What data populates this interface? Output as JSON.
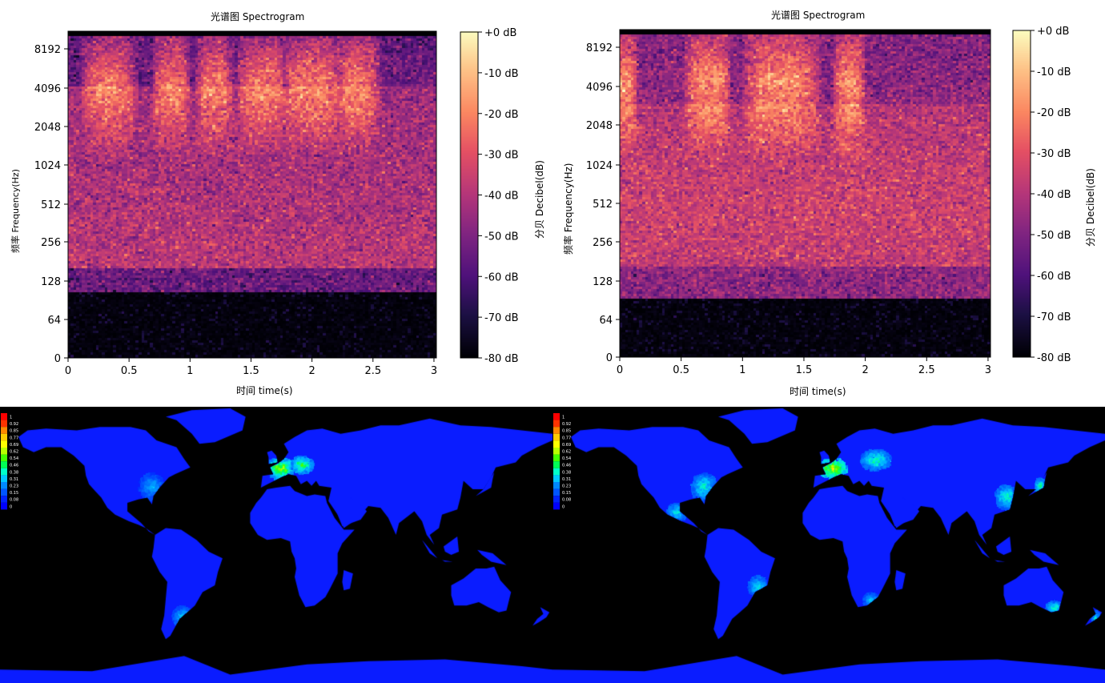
{
  "spectrograms": [
    {
      "title": "光谱图 Spectrogram",
      "xlabel": "时间 time(s)",
      "ylabel": "频率 Frequency(Hz)",
      "colorbar_label": "分贝 Decibel(dB)"
    },
    {
      "title": "光谱图 Spectrogram",
      "xlabel": "时间 time(s)",
      "ylabel": "频率 Frequency(Hz)",
      "colorbar_label": "分贝 Decibel(dB)"
    }
  ],
  "maps": [
    {
      "legend_labels": [
        "1",
        "0.92",
        "0.85",
        "0.77",
        "0.69",
        "0.62",
        "0.54",
        "0.46",
        "0.38",
        "0.31",
        "0.23",
        "0.15",
        "0.08",
        "0"
      ]
    },
    {
      "legend_labels": [
        "1",
        "0.92",
        "0.85",
        "0.77",
        "0.69",
        "0.62",
        "0.54",
        "0.46",
        "0.38",
        "0.31",
        "0.23",
        "0.15",
        "0.08",
        "0"
      ]
    }
  ],
  "chart_data": [
    {
      "type": "heatmap",
      "title": "光谱图 Spectrogram",
      "xlabel": "时间 time(s)",
      "ylabel": "频率 Frequency(Hz)",
      "x_ticks": [
        "0",
        "0.5",
        "1",
        "1.5",
        "2",
        "2.5",
        "3"
      ],
      "y_ticks": [
        "0",
        "64",
        "128",
        "256",
        "512",
        "1024",
        "2048",
        "4096",
        "8192"
      ],
      "y_scale": "log2 (symlog)",
      "colorbar_label": "分贝 Decibel(dB)",
      "colorbar_ticks": [
        "+0 dB",
        "-10 dB",
        "-20 dB",
        "-30 dB",
        "-40 dB",
        "-50 dB",
        "-60 dB",
        "-70 dB",
        "-80 dB"
      ],
      "colormap": "magma",
      "time_range": [
        0,
        3.02
      ],
      "db_range": [
        -80,
        0
      ],
      "bursts": [
        [
          0.18,
          0.5
        ],
        [
          0.75,
          0.95
        ],
        [
          1.1,
          1.3
        ],
        [
          1.45,
          1.75
        ],
        [
          1.8,
          2.2
        ],
        [
          2.25,
          2.5
        ]
      ],
      "burst_freq_center": 4600
    },
    {
      "type": "heatmap",
      "title": "光谱图 Spectrogram",
      "xlabel": "时间 time(s)",
      "ylabel": "频率 Frequency(Hz)",
      "x_ticks": [
        "0",
        "0.5",
        "1",
        "1.5",
        "2",
        "2.5",
        "3"
      ],
      "y_ticks": [
        "0",
        "64",
        "128",
        "256",
        "512",
        "1024",
        "2048",
        "4096",
        "8192"
      ],
      "y_scale": "log2 (symlog)",
      "colorbar_label": "分贝 Decibel(dB)",
      "colorbar_ticks": [
        "+0 dB",
        "-10 dB",
        "-20 dB",
        "-30 dB",
        "-40 dB",
        "-50 dB",
        "-60 dB",
        "-70 dB",
        "-80 dB"
      ],
      "colormap": "magma",
      "time_range": [
        0,
        3.02
      ],
      "db_range": [
        -80,
        0
      ],
      "bursts": [
        [
          0.0,
          0.1
        ],
        [
          0.6,
          0.85
        ],
        [
          1.1,
          1.55
        ],
        [
          1.8,
          1.95
        ]
      ],
      "burst_freq_center": 4300
    },
    {
      "type": "heatmap",
      "legend_labels": [
        "1",
        "0.92",
        "0.85",
        "0.77",
        "0.69",
        "0.62",
        "0.54",
        "0.46",
        "0.38",
        "0.31",
        "0.23",
        "0.15",
        "0.08",
        "0"
      ],
      "value_range": [
        0,
        1
      ],
      "legend_colors": [
        "#ff0000",
        "#ff3300",
        "#ff8800",
        "#ffcc00",
        "#ffff00",
        "#b8ff00",
        "#44ff00",
        "#00ff55",
        "#00ffc8",
        "#00c8ff",
        "#0088ff",
        "#0055ff",
        "#0022ff",
        "#0000ff"
      ],
      "hotspots": [
        {
          "region": "Western Europe",
          "value": 0.65
        },
        {
          "region": "Central Europe",
          "value": 0.55
        },
        {
          "region": "Eastern United States",
          "value": 0.3
        },
        {
          "region": "Southern South America",
          "value": 0.35
        }
      ]
    },
    {
      "type": "heatmap",
      "legend_labels": [
        "1",
        "0.92",
        "0.85",
        "0.77",
        "0.69",
        "0.62",
        "0.54",
        "0.46",
        "0.38",
        "0.31",
        "0.23",
        "0.15",
        "0.08",
        "0"
      ],
      "value_range": [
        0,
        1
      ],
      "legend_colors": [
        "#ff0000",
        "#ff3300",
        "#ff8800",
        "#ffcc00",
        "#ffff00",
        "#b8ff00",
        "#44ff00",
        "#00ff55",
        "#00ffc8",
        "#00c8ff",
        "#0088ff",
        "#0055ff",
        "#0022ff",
        "#0000ff"
      ],
      "hotspots": [
        {
          "region": "Western Europe",
          "value": 0.7
        },
        {
          "region": "Eastern Europe",
          "value": 0.45
        },
        {
          "region": "Eastern United States",
          "value": 0.42
        },
        {
          "region": "Mexico",
          "value": 0.4
        },
        {
          "region": "Eastern China",
          "value": 0.45
        },
        {
          "region": "Japan",
          "value": 0.5
        },
        {
          "region": "Southeast Brazil",
          "value": 0.4
        },
        {
          "region": "South Africa",
          "value": 0.35
        },
        {
          "region": "Southeast Australia",
          "value": 0.45
        },
        {
          "region": "New Zealand",
          "value": 0.45
        }
      ]
    }
  ]
}
